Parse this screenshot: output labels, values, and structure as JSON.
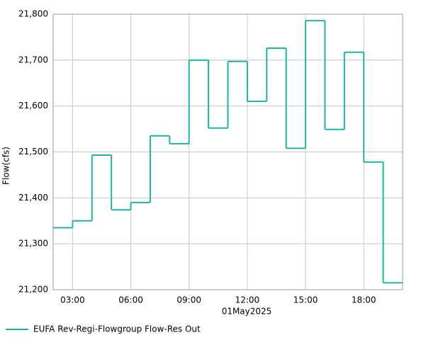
{
  "chart_data": {
    "type": "step-line",
    "xlabel": "01May2025",
    "ylabel": "Flow(cfs)",
    "x": [
      "02:00",
      "03:00",
      "04:00",
      "05:00",
      "06:00",
      "07:00",
      "08:00",
      "09:00",
      "10:00",
      "11:00",
      "12:00",
      "13:00",
      "14:00",
      "15:00",
      "16:00",
      "17:00",
      "18:00",
      "19:00"
    ],
    "series": [
      {
        "name": "EUFA Rev-Regi-Flowgroup Flow-Res Out",
        "color": "#20b2aa",
        "values": [
          21335,
          21350,
          21493,
          21374,
          21390,
          21535,
          21518,
          21700,
          21552,
          21697,
          21610,
          21726,
          21508,
          21786,
          21549,
          21717,
          21478,
          21215
        ]
      }
    ],
    "xlim": [
      "02:00",
      "20:00"
    ],
    "xticks": [
      "03:00",
      "06:00",
      "09:00",
      "12:00",
      "15:00",
      "18:00"
    ],
    "ylim": [
      21200,
      21800
    ],
    "yticks": [
      {
        "value": 21200,
        "label": "21,200"
      },
      {
        "value": 21300,
        "label": "21,300"
      },
      {
        "value": 21400,
        "label": "21,400"
      },
      {
        "value": 21500,
        "label": "21,500"
      },
      {
        "value": 21600,
        "label": "21,600"
      },
      {
        "value": 21700,
        "label": "21,700"
      },
      {
        "value": 21800,
        "label": "21,800"
      }
    ],
    "grid": true,
    "legend": "bottom-left"
  }
}
